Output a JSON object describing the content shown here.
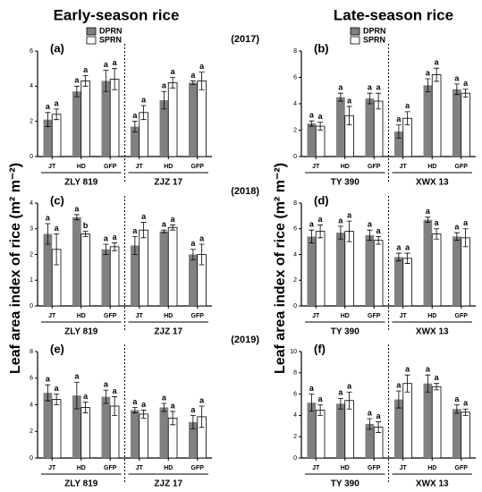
{
  "titles": [
    "Early-season rice",
    "Late-season rice"
  ],
  "ylabel": "Leaf area index of rice (m² m⁻²)",
  "chart_data": [
    {
      "type": "bar",
      "label": "(a)",
      "year": "(2017)",
      "legend": true,
      "categories": [
        "JT",
        "HD",
        "GFP",
        "JT",
        "HD",
        "GFP"
      ],
      "groups": [
        "ZLY 819",
        "ZJZ 17"
      ],
      "series": [
        {
          "name": "DPRN",
          "color": "#808080",
          "values": [
            2.1,
            3.7,
            4.3,
            1.7,
            3.2,
            4.2
          ],
          "errors": [
            0.4,
            0.3,
            0.6,
            0.3,
            0.5,
            0.1
          ],
          "letters": [
            "a",
            "a",
            "a",
            "a",
            "a",
            "a"
          ]
        },
        {
          "name": "SPRN",
          "color": "#ffffff",
          "values": [
            2.4,
            4.3,
            4.4,
            2.5,
            4.2,
            4.3
          ],
          "errors": [
            0.3,
            0.3,
            0.6,
            0.4,
            0.3,
            0.5
          ],
          "letters": [
            "a",
            "a",
            "a",
            "a",
            "a",
            "a"
          ]
        }
      ],
      "ylim": [
        0,
        6
      ],
      "yticks": [
        0,
        2,
        4,
        6
      ]
    },
    {
      "type": "bar",
      "label": "(b)",
      "legend": true,
      "categories": [
        "JT",
        "HD",
        "GFP",
        "JT",
        "HD",
        "GFP"
      ],
      "groups": [
        "TY 390",
        "XWX 13"
      ],
      "series": [
        {
          "name": "DPRN",
          "color": "#808080",
          "values": [
            2.5,
            4.5,
            4.4,
            1.9,
            5.4,
            5.1
          ],
          "errors": [
            0.2,
            0.3,
            0.4,
            0.5,
            0.5,
            0.4
          ],
          "letters": [
            "a",
            "a",
            "a",
            "a",
            "a",
            "a"
          ]
        },
        {
          "name": "SPRN",
          "color": "#ffffff",
          "values": [
            2.3,
            3.1,
            4.2,
            2.9,
            6.2,
            4.8
          ],
          "errors": [
            0.3,
            0.7,
            0.6,
            0.5,
            0.5,
            0.3
          ],
          "letters": [
            "a",
            "a",
            "a",
            "a",
            "a",
            "a"
          ]
        }
      ],
      "ylim": [
        0,
        8
      ],
      "yticks": [
        0,
        2,
        4,
        6,
        8
      ]
    },
    {
      "type": "bar",
      "label": "(c)",
      "year": "(2018)",
      "categories": [
        "JT",
        "HD",
        "GFP",
        "JT",
        "HD",
        "GFP"
      ],
      "groups": [
        "ZLY 819",
        "ZJZ 17"
      ],
      "series": [
        {
          "color": "#808080",
          "values": [
            2.8,
            3.45,
            2.2,
            2.35,
            2.9,
            2.0
          ],
          "errors": [
            0.4,
            0.1,
            0.2,
            0.35,
            0.05,
            0.2
          ],
          "letters": [
            "a",
            "a",
            "a",
            "a",
            "a",
            "a"
          ]
        },
        {
          "color": "#ffffff",
          "values": [
            2.2,
            2.8,
            2.3,
            2.95,
            3.05,
            2.0
          ],
          "errors": [
            0.6,
            0.1,
            0.15,
            0.3,
            0.1,
            0.4
          ],
          "letters": [
            "a",
            "b",
            "a",
            "a",
            "a",
            "a"
          ]
        }
      ],
      "ylim": [
        0,
        4
      ],
      "yticks": [
        0,
        1,
        2,
        3,
        4
      ]
    },
    {
      "type": "bar",
      "label": "(d)",
      "categories": [
        "JT",
        "HD",
        "GFP",
        "JT",
        "HD",
        "GFP"
      ],
      "groups": [
        "TY 390",
        "XWX 13"
      ],
      "series": [
        {
          "color": "#808080",
          "values": [
            5.4,
            5.7,
            5.5,
            3.8,
            6.7,
            5.4
          ],
          "errors": [
            0.5,
            0.5,
            0.4,
            0.3,
            0.2,
            0.3
          ],
          "letters": [
            "a",
            "a",
            "a",
            "a",
            "a",
            "a"
          ]
        },
        {
          "color": "#ffffff",
          "values": [
            5.8,
            5.8,
            5.1,
            3.7,
            5.6,
            5.3
          ],
          "errors": [
            0.5,
            0.8,
            0.3,
            0.4,
            0.4,
            0.7
          ],
          "letters": [
            "a",
            "a",
            "a",
            "a",
            "a",
            "a"
          ]
        }
      ],
      "ylim": [
        0,
        8
      ],
      "yticks": [
        0,
        2,
        4,
        6,
        8
      ]
    },
    {
      "type": "bar",
      "label": "(e)",
      "year": "(2019)",
      "categories": [
        "JT",
        "HD",
        "GFP",
        "JT",
        "HD",
        "GFP"
      ],
      "groups": [
        "ZLY 819",
        "ZJZ 17"
      ],
      "series": [
        {
          "color": "#808080",
          "values": [
            4.9,
            4.7,
            4.6,
            3.6,
            3.8,
            2.7
          ],
          "errors": [
            0.6,
            1.0,
            0.5,
            0.2,
            0.3,
            0.5
          ],
          "letters": [
            "a",
            "a",
            "a",
            "a",
            "a",
            "a"
          ]
        },
        {
          "color": "#ffffff",
          "values": [
            4.4,
            3.8,
            3.9,
            3.3,
            3.0,
            3.1
          ],
          "errors": [
            0.4,
            0.4,
            0.7,
            0.3,
            0.5,
            0.8
          ],
          "letters": [
            "a",
            "a",
            "a",
            "a",
            "a",
            "a"
          ]
        }
      ],
      "ylim": [
        0,
        8
      ],
      "yticks": [
        0,
        2,
        4,
        6,
        8
      ]
    },
    {
      "type": "bar",
      "label": "(f)",
      "categories": [
        "JT",
        "HD",
        "GFP",
        "JT",
        "HD",
        "GFP"
      ],
      "groups": [
        "TY 390",
        "XWX 13"
      ],
      "series": [
        {
          "color": "#808080",
          "values": [
            5.2,
            5.1,
            3.2,
            5.5,
            7.0,
            4.6
          ],
          "errors": [
            0.8,
            0.5,
            0.5,
            0.8,
            0.8,
            0.4
          ],
          "letters": [
            "a",
            "a",
            "a",
            "a",
            "a",
            "a"
          ]
        },
        {
          "color": "#ffffff",
          "values": [
            4.5,
            5.4,
            2.9,
            7.0,
            6.7,
            4.3
          ],
          "errors": [
            0.5,
            0.8,
            0.5,
            0.8,
            0.3,
            0.3
          ],
          "letters": [
            "a",
            "a",
            "a",
            "a",
            "a",
            "a"
          ]
        }
      ],
      "ylim": [
        0,
        10
      ],
      "yticks": [
        0,
        2,
        4,
        6,
        8,
        10
      ]
    }
  ]
}
